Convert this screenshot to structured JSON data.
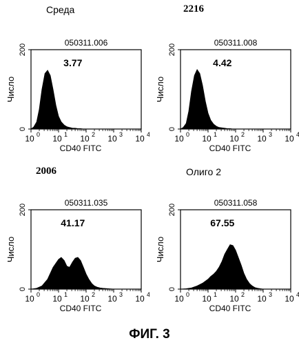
{
  "figure": {
    "caption": "ФИГ. 3"
  },
  "chart_data": [
    {
      "type": "area",
      "heading": "Среда",
      "title": "050311.006",
      "value_label": "3.77",
      "xlabel": "CD40 FITC",
      "ylabel": "Число",
      "x_scale": "log",
      "xlim": [
        1,
        10000
      ],
      "ylim": [
        0,
        200
      ],
      "x_ticks": [
        "10",
        "10",
        "10",
        "10",
        "10"
      ],
      "x_tick_exponents": [
        "0",
        "1",
        "2",
        "3",
        "4"
      ],
      "y_ticks": [
        "0",
        "200"
      ],
      "series": [
        {
          "x": [
            1.0,
            1.25,
            1.6,
            2.0,
            2.5,
            3.2,
            4.0,
            5.0,
            6.3,
            8.0,
            10,
            12.5,
            16,
            20,
            25,
            32,
            40,
            50,
            63,
            80,
            100
          ],
          "values": [
            0,
            5,
            18,
            50,
            100,
            140,
            148,
            135,
            100,
            60,
            32,
            18,
            10,
            6,
            4,
            2,
            2,
            1,
            1,
            0,
            0
          ]
        }
      ]
    },
    {
      "type": "area",
      "heading": "2216",
      "title": "050311.008",
      "value_label": "4.42",
      "xlabel": "CD40 FITC",
      "ylabel": "Число",
      "x_scale": "log",
      "xlim": [
        1,
        10000
      ],
      "ylim": [
        0,
        200
      ],
      "x_ticks": [
        "10",
        "10",
        "10",
        "10",
        "10"
      ],
      "x_tick_exponents": [
        "0",
        "1",
        "2",
        "3",
        "4"
      ],
      "y_ticks": [
        "0",
        "200"
      ],
      "series": [
        {
          "x": [
            1.0,
            1.25,
            1.6,
            2.0,
            2.5,
            3.2,
            4.0,
            5.0,
            6.3,
            8.0,
            10,
            12.5,
            16,
            20,
            25,
            32,
            40,
            50,
            63,
            80,
            100
          ],
          "values": [
            0,
            4,
            14,
            45,
            95,
            135,
            150,
            140,
            110,
            70,
            40,
            22,
            12,
            7,
            4,
            3,
            2,
            1,
            1,
            0,
            0
          ]
        }
      ]
    },
    {
      "type": "area",
      "heading": "2006",
      "title": "050311.035",
      "value_label": "41.17",
      "xlabel": "CD40 FITC",
      "ylabel": "Число",
      "x_scale": "log",
      "xlim": [
        1,
        10000
      ],
      "ylim": [
        0,
        200
      ],
      "x_ticks": [
        "10",
        "10",
        "10",
        "10",
        "10"
      ],
      "x_tick_exponents": [
        "0",
        "1",
        "2",
        "3",
        "4"
      ],
      "y_ticks": [
        "0",
        "200"
      ],
      "series": [
        {
          "x": [
            1.0,
            1.6,
            2.5,
            4.0,
            6.3,
            10,
            12.5,
            16,
            20,
            25,
            32,
            40,
            50,
            63,
            80,
            100,
            125,
            160,
            200,
            250,
            320,
            400,
            630,
            1000
          ],
          "values": [
            0,
            2,
            8,
            25,
            55,
            75,
            80,
            72,
            58,
            55,
            68,
            78,
            80,
            72,
            55,
            38,
            25,
            14,
            8,
            5,
            3,
            2,
            1,
            0
          ]
        }
      ]
    },
    {
      "type": "area",
      "heading": "Олиго 2",
      "title": "050311.058",
      "value_label": "67.55",
      "xlabel": "CD40 FITC",
      "ylabel": "Число",
      "x_scale": "log",
      "xlim": [
        1,
        10000
      ],
      "ylim": [
        0,
        200
      ],
      "x_ticks": [
        "10",
        "10",
        "10",
        "10",
        "10"
      ],
      "x_tick_exponents": [
        "0",
        "1",
        "2",
        "3",
        "4"
      ],
      "y_ticks": [
        "0",
        "200"
      ],
      "series": [
        {
          "x": [
            1.0,
            1.6,
            2.5,
            4.0,
            6.3,
            10,
            12.5,
            16,
            20,
            25,
            32,
            40,
            50,
            63,
            80,
            100,
            125,
            160,
            200,
            250,
            320,
            400,
            500,
            630,
            1000
          ],
          "values": [
            0,
            1,
            3,
            8,
            15,
            25,
            32,
            38,
            45,
            55,
            70,
            88,
            100,
            112,
            110,
            98,
            80,
            60,
            40,
            25,
            14,
            8,
            4,
            2,
            0
          ]
        }
      ]
    }
  ]
}
